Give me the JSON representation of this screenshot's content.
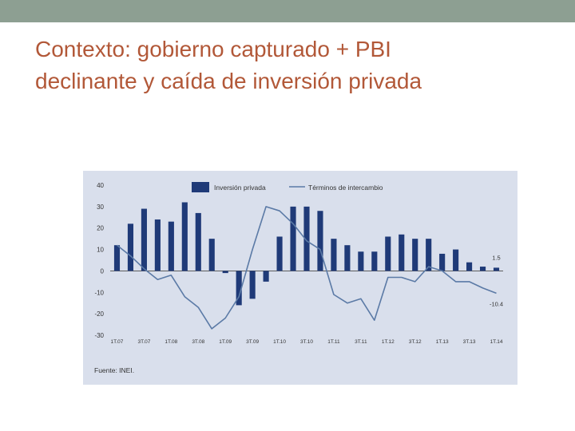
{
  "slide": {
    "title_line1": "Contexto: gobierno capturado + PBI",
    "title_line2": "declinante y caída de inversión privada"
  },
  "colors": {
    "topbar": "#8d9f92",
    "title": "#b25838",
    "chart_background": "#d9dfec",
    "bar": "#1f3a78",
    "line": "#5b7aa6"
  },
  "chart_data": {
    "type": "bar",
    "legend": [
      "Inversión privada",
      "Términos de intercambio"
    ],
    "legend_position": "top",
    "source": "Fuente: INEI.",
    "ylim": [
      -30,
      40
    ],
    "yticks": [
      "40",
      "30",
      "20",
      "10",
      "0",
      "-10",
      "-20",
      "-30"
    ],
    "xtick_labels": [
      "1T.07",
      "3T.07",
      "1T.08",
      "3T.08",
      "1T.09",
      "3T.09",
      "1T.10",
      "3T.10",
      "1T.11",
      "3T.11",
      "1T.12",
      "3T.12",
      "1T.13",
      "3T.13",
      "1T.14"
    ],
    "categories": [
      "1T.07",
      "2T.07",
      "3T.07",
      "4T.07",
      "1T.08",
      "2T.08",
      "3T.08",
      "4T.08",
      "1T.09",
      "2T.09",
      "3T.09",
      "4T.09",
      "1T.10",
      "2T.10",
      "3T.10",
      "4T.10",
      "1T.11",
      "2T.11",
      "3T.11",
      "4T.11",
      "1T.12",
      "2T.12",
      "3T.12",
      "4T.12",
      "1T.13",
      "2T.13",
      "3T.13",
      "4T.13",
      "1T.14"
    ],
    "series": [
      {
        "name": "Inversión privada",
        "type": "bar",
        "values": [
          12,
          22,
          29,
          24,
          23,
          32,
          27,
          15,
          -1,
          -16,
          -13,
          -5,
          16,
          30,
          30,
          28,
          15,
          12,
          9,
          9,
          16,
          17,
          15,
          15,
          8,
          10,
          4,
          2,
          1.5
        ]
      },
      {
        "name": "Términos de intercambio",
        "type": "line",
        "values": [
          12,
          7,
          1,
          -4,
          -2,
          -12,
          -17,
          -27,
          -22,
          -12,
          10,
          30,
          28,
          22,
          14,
          10,
          -11,
          -15,
          -13,
          -23,
          -3,
          -3,
          -5,
          2,
          0,
          -5,
          -5,
          -8,
          -10.4
        ]
      }
    ],
    "annotations": [
      {
        "text": "1.5",
        "category": "1T.14",
        "value": 1.5
      },
      {
        "text": "-10.4",
        "category": "1T.14",
        "value": -10.4
      }
    ]
  }
}
